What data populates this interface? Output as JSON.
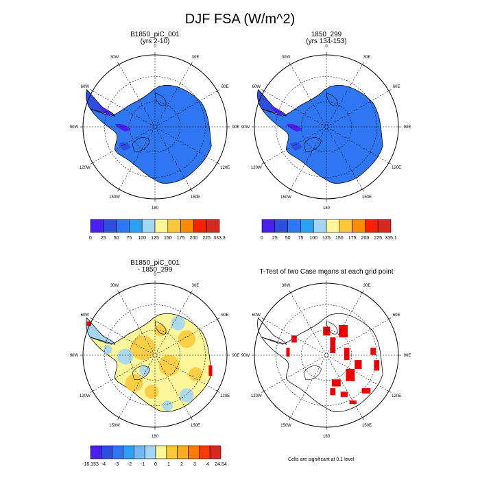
{
  "title": "DJF FSA (W/m^2)",
  "panels": [
    {
      "title_line1": "B1850_piC_001",
      "title_line2": "(yrs 2-10)"
    },
    {
      "title_line1": "1850_299",
      "title_line2": "(yrs 134-153)"
    },
    {
      "title_line1": "B1850_piC_001",
      "title_line2": "- 1850_299"
    },
    {
      "title_line1": "T-Test of two Case means at each grid point",
      "title_line2": ""
    }
  ],
  "longitude_labels": [
    "0",
    "30E",
    "60E",
    "90E",
    "120E",
    "150E",
    "180",
    "150W",
    "120W",
    "90W",
    "60W",
    "30W"
  ],
  "colorbars": [
    {
      "labels": [
        "0",
        "25",
        "50",
        "75",
        "100",
        "125",
        "150",
        "175",
        "200",
        "225",
        "333.3"
      ],
      "colors": [
        "#4b1ff0",
        "#2e4ede",
        "#2f76f2",
        "#2ea0f4",
        "#a3d6f4",
        "#fdf69a",
        "#fbc73a",
        "#fb8c00",
        "#fb1f00",
        "#d7281f"
      ]
    },
    {
      "labels": [
        "0",
        "25",
        "50",
        "75",
        "100",
        "125",
        "150",
        "175",
        "200",
        "225",
        "335.1"
      ],
      "colors": [
        "#4b1ff0",
        "#2e4ede",
        "#2f76f2",
        "#2ea0f4",
        "#a3d6f4",
        "#fdf69a",
        "#fbc73a",
        "#fb8c00",
        "#fb1f00",
        "#d7281f"
      ]
    },
    {
      "labels": [
        "-16.153",
        "-4",
        "-3",
        "-2",
        "-1",
        "0",
        "1",
        "2",
        "3",
        "4",
        "24.54"
      ],
      "colors": [
        "#4b1ff0",
        "#2e4ede",
        "#2f76f2",
        "#2ea0f4",
        "#72b8f4",
        "#a3d6f4",
        "#fdf69a",
        "#fbc73a",
        "#fbab20",
        "#fb7a00",
        "#fb3a00",
        "#d7281f"
      ]
    }
  ],
  "significance_note": "Cells are significant at 0.1 level",
  "colors": {
    "mean_field": "#2f76f2",
    "peninsula_dark": "#2e4ede",
    "peninsula_violet": "#4b1ff0",
    "diff_positive": "#fdf69a",
    "diff_warm": "#fbc73a",
    "diff_negative": "#a3d6f4",
    "significant": "#ee0000"
  }
}
